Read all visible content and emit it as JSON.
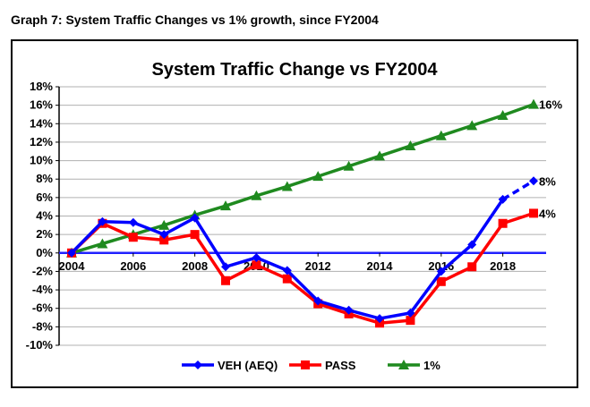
{
  "caption": "Graph 7:  System Traffic Changes vs 1% growth, since FY2004",
  "chart_data": {
    "type": "line",
    "title": "System Traffic Change vs FY2004",
    "x": [
      2004,
      2005,
      2006,
      2007,
      2008,
      2009,
      2010,
      2011,
      2012,
      2013,
      2014,
      2015,
      2016,
      2017,
      2018,
      2019
    ],
    "x_tick_labels": [
      "2004",
      "2006",
      "2008",
      "2010",
      "2012",
      "2014",
      "2016",
      "2018"
    ],
    "x_tick_values": [
      2004,
      2006,
      2008,
      2010,
      2012,
      2014,
      2016,
      2018
    ],
    "ylim": [
      -10,
      18
    ],
    "y_ticks": [
      18,
      16,
      14,
      12,
      10,
      8,
      6,
      4,
      2,
      0,
      -2,
      -4,
      -6,
      -8,
      -10
    ],
    "y_tick_format": "percent",
    "grid": true,
    "legend_position": "bottom",
    "series": [
      {
        "name": "VEH (AEQ)",
        "color": "#0000ff",
        "marker": "diamond",
        "values": [
          0,
          3.4,
          3.3,
          2.0,
          3.8,
          -1.5,
          -0.5,
          -1.9,
          -5.2,
          -6.2,
          -7.1,
          -6.5,
          -2.0,
          0.9,
          5.8,
          7.8
        ],
        "dashed_from_index": 14,
        "end_label": "8%"
      },
      {
        "name": "PASS",
        "color": "#ff0000",
        "marker": "square",
        "values": [
          0,
          3.2,
          1.7,
          1.4,
          2.0,
          -3.0,
          -1.3,
          -2.8,
          -5.5,
          -6.6,
          -7.6,
          -7.3,
          -3.1,
          -1.5,
          3.2,
          4.3
        ],
        "dashed_from_index": null,
        "end_label": "4%"
      },
      {
        "name": "1%",
        "color": "#1f8a1f",
        "marker": "triangle",
        "values": [
          0,
          1.0,
          2.0,
          3.0,
          4.1,
          5.1,
          6.2,
          7.2,
          8.3,
          9.4,
          10.5,
          11.6,
          12.7,
          13.8,
          14.9,
          16.1
        ],
        "dashed_from_index": null,
        "end_label": "16%"
      }
    ]
  }
}
